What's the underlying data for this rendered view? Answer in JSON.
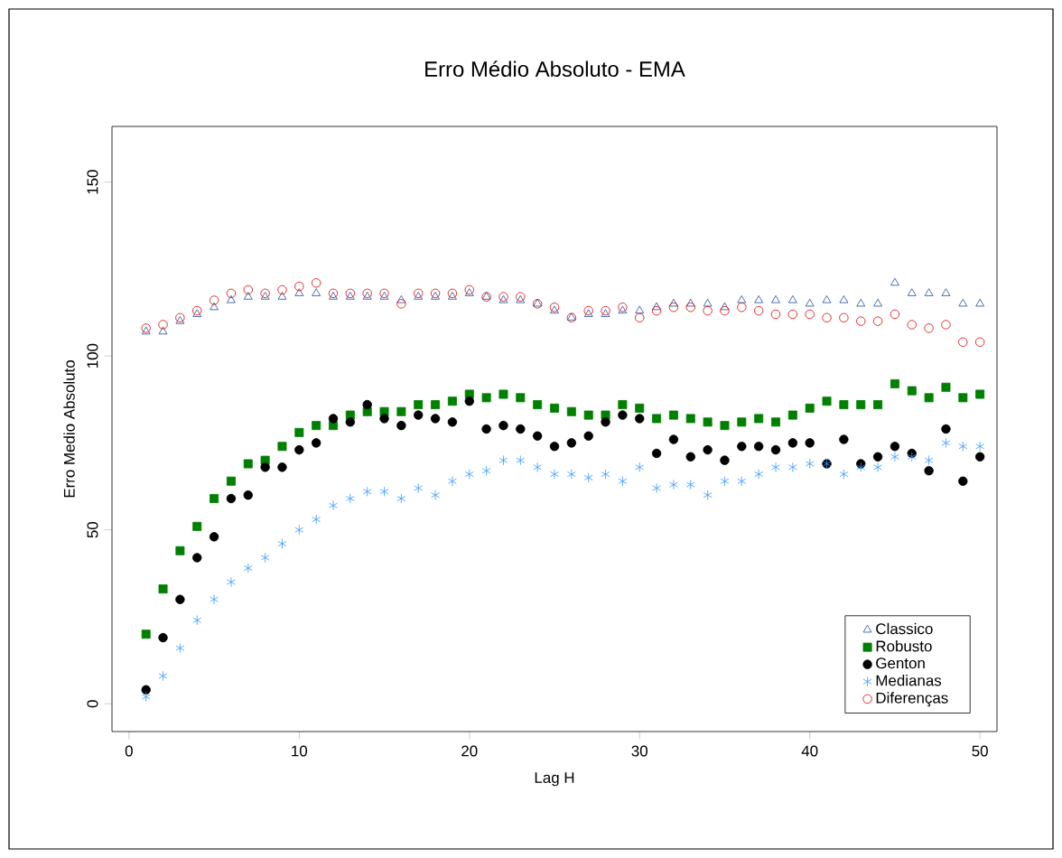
{
  "chart_data": {
    "type": "scatter",
    "title": "Erro Médio Absoluto - EMA",
    "xlabel": "Lag H",
    "ylabel": "Erro Medio Absoluto",
    "x": [
      1,
      2,
      3,
      4,
      5,
      6,
      7,
      8,
      9,
      10,
      11,
      12,
      13,
      14,
      15,
      16,
      17,
      18,
      19,
      20,
      21,
      22,
      23,
      24,
      25,
      26,
      27,
      28,
      29,
      30,
      31,
      32,
      33,
      34,
      35,
      36,
      37,
      38,
      39,
      40,
      41,
      42,
      43,
      44,
      45,
      46,
      47,
      48,
      49,
      50
    ],
    "xlim": [
      -1,
      51
    ],
    "xticks": [
      0,
      10,
      20,
      30,
      40,
      50
    ],
    "ylim": [
      -8,
      166
    ],
    "yticks": [
      0,
      50,
      100,
      150
    ],
    "grid": false,
    "legend": "bottom right",
    "series": [
      {
        "name": "Classico",
        "color": "#1f4e9c",
        "marker": "triangle-open",
        "values": [
          107,
          107,
          110,
          112,
          114,
          116,
          117,
          117,
          117,
          118,
          118,
          117,
          117,
          117,
          117,
          116,
          117,
          117,
          117,
          118,
          117,
          116,
          116,
          115,
          113,
          111,
          112,
          112,
          113,
          113,
          114,
          115,
          115,
          115,
          114,
          116,
          116,
          116,
          116,
          115,
          116,
          116,
          115,
          115,
          121,
          118,
          118,
          118,
          115,
          115
        ]
      },
      {
        "name": "Robusto",
        "color": "#008000",
        "marker": "square",
        "values": [
          20,
          33,
          44,
          51,
          59,
          64,
          69,
          70,
          74,
          78,
          80,
          80,
          83,
          84,
          84,
          84,
          86,
          86,
          87,
          89,
          88,
          89,
          88,
          86,
          85,
          84,
          83,
          83,
          86,
          85,
          82,
          83,
          82,
          81,
          80,
          81,
          82,
          81,
          83,
          85,
          87,
          86,
          86,
          86,
          92,
          90,
          88,
          91,
          88,
          89
        ]
      },
      {
        "name": "Genton",
        "color": "#000000",
        "marker": "circle",
        "values": [
          4,
          19,
          30,
          42,
          48,
          59,
          60,
          68,
          68,
          73,
          75,
          82,
          81,
          86,
          82,
          80,
          83,
          82,
          81,
          87,
          79,
          80,
          79,
          77,
          74,
          75,
          77,
          81,
          83,
          82,
          72,
          76,
          71,
          73,
          70,
          74,
          74,
          73,
          75,
          75,
          69,
          76,
          69,
          71,
          74,
          72,
          67,
          79,
          64,
          71
        ]
      },
      {
        "name": "Medianas",
        "color": "#3399ff",
        "marker": "cross",
        "values": [
          2,
          8,
          16,
          24,
          30,
          35,
          39,
          42,
          46,
          50,
          53,
          57,
          59,
          61,
          61,
          59,
          62,
          60,
          64,
          66,
          67,
          70,
          70,
          68,
          66,
          66,
          65,
          66,
          64,
          68,
          62,
          63,
          63,
          60,
          64,
          64,
          66,
          68,
          68,
          69,
          69,
          66,
          68,
          68,
          71,
          71,
          70,
          75,
          74,
          74
        ]
      },
      {
        "name": "Diferenças",
        "color": "#e00000",
        "marker": "circle-open",
        "values": [
          108,
          109,
          111,
          113,
          116,
          118,
          119,
          118,
          119,
          120,
          121,
          118,
          118,
          118,
          118,
          115,
          118,
          118,
          118,
          119,
          117,
          117,
          117,
          115,
          114,
          111,
          113,
          113,
          114,
          111,
          113,
          114,
          114,
          113,
          113,
          114,
          113,
          112,
          112,
          112,
          111,
          111,
          110,
          110,
          112,
          109,
          108,
          109,
          104,
          104
        ]
      }
    ]
  }
}
